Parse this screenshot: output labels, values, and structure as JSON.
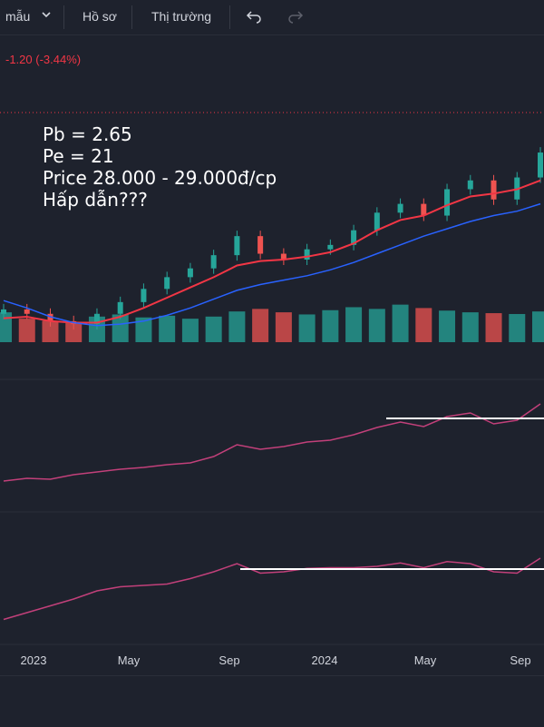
{
  "toolbar": {
    "template_label": "mẫu",
    "profile_label": "Hồ sơ",
    "market_label": "Thị trường",
    "chevron_icon": "chevron-down-icon",
    "undo_icon": "undo-icon",
    "redo_icon": "redo-icon"
  },
  "price_change": "-1.20 (-3.44%)",
  "annotation": {
    "line1": "Pb = 2.65",
    "line2": "Pe = 21",
    "line3": "Price 28.000 - 29.000đ/cp",
    "line4": "Hấp dẫn???"
  },
  "colors": {
    "up": "#26a69a",
    "down": "#ef5350",
    "ma_short": "#f23645",
    "ma_long": "#2962ff",
    "indicator": "#c2407a",
    "reference_line": "#ffffff"
  },
  "chart_data": {
    "type": "line",
    "x_ticks": [
      "2023",
      "May",
      "Sep",
      "2024",
      "May",
      "Sep"
    ],
    "x_range": [
      "2022-11",
      "2024-10"
    ],
    "grid": false,
    "legend": "none",
    "series": [
      {
        "x": [
          "2022-11",
          "2022-12",
          "2023-01",
          "2023-02",
          "2023-03",
          "2023-04",
          "2023-05",
          "2023-06",
          "2023-07",
          "2023-08",
          "2023-09",
          "2023-10",
          "2023-11",
          "2023-12",
          "2024-01",
          "2024-02",
          "2024-03",
          "2024-04",
          "2024-05",
          "2024-06",
          "2024-07",
          "2024-08",
          "2024-09",
          "2024-10"
        ],
        "values": [
          21.8,
          21.5,
          21.0,
          20.8,
          21.5,
          22.3,
          23.2,
          24.0,
          24.6,
          25.5,
          26.8,
          25.6,
          25.2,
          25.9,
          26.2,
          27.2,
          28.4,
          29.0,
          28.2,
          30.0,
          30.6,
          29.3,
          30.8,
          32.5
        ]
      },
      {
        "x": [
          "2022-11",
          "2022-12",
          "2023-01",
          "2023-02",
          "2023-03",
          "2023-04",
          "2023-05",
          "2023-06",
          "2023-07",
          "2023-08",
          "2023-09",
          "2023-10",
          "2023-11",
          "2023-12",
          "2024-01",
          "2024-02",
          "2024-03",
          "2024-04",
          "2024-05",
          "2024-06",
          "2024-07",
          "2024-08",
          "2024-09",
          "2024-10"
        ],
        "values": [
          21.2,
          21.3,
          21.0,
          20.9,
          20.9,
          21.3,
          21.9,
          22.6,
          23.3,
          24.0,
          24.8,
          25.1,
          25.2,
          25.4,
          25.7,
          26.3,
          27.2,
          27.9,
          28.2,
          28.9,
          29.5,
          29.7,
          30.0,
          30.6
        ]
      },
      {
        "x": [
          "2022-11",
          "2022-12",
          "2023-01",
          "2023-02",
          "2023-03",
          "2023-04",
          "2023-05",
          "2023-06",
          "2023-07",
          "2023-08",
          "2023-09",
          "2023-10",
          "2023-11",
          "2023-12",
          "2024-01",
          "2024-02",
          "2024-03",
          "2024-04",
          "2024-05",
          "2024-06",
          "2024-07",
          "2024-08",
          "2024-09",
          "2024-10"
        ],
        "values": [
          22.4,
          21.9,
          21.3,
          20.9,
          20.7,
          20.8,
          21.0,
          21.4,
          21.9,
          22.5,
          23.1,
          23.5,
          23.8,
          24.1,
          24.5,
          25.0,
          25.6,
          26.2,
          26.8,
          27.3,
          27.8,
          28.2,
          28.5,
          29.0
        ]
      }
    ],
    "volume": [
      0.7,
      0.55,
      0.5,
      0.45,
      0.6,
      0.65,
      0.58,
      0.62,
      0.55,
      0.6,
      0.72,
      0.78,
      0.7,
      0.65,
      0.75,
      0.82,
      0.78,
      0.88,
      0.8,
      0.74,
      0.7,
      0.68,
      0.66,
      0.72
    ],
    "indicator_1": [
      0.15,
      0.18,
      0.17,
      0.22,
      0.25,
      0.28,
      0.3,
      0.33,
      0.35,
      0.42,
      0.55,
      0.5,
      0.53,
      0.58,
      0.6,
      0.66,
      0.74,
      0.8,
      0.75,
      0.86,
      0.9,
      0.78,
      0.82,
      1.0
    ],
    "indicator_2": [
      0.1,
      0.2,
      0.3,
      0.4,
      0.52,
      0.58,
      0.6,
      0.62,
      0.7,
      0.8,
      0.92,
      0.78,
      0.8,
      0.85,
      0.86,
      0.86,
      0.88,
      0.93,
      0.86,
      0.95,
      0.92,
      0.8,
      0.78,
      1.0
    ],
    "reference_level_1": 0.84,
    "reference_level_2": 0.84
  }
}
